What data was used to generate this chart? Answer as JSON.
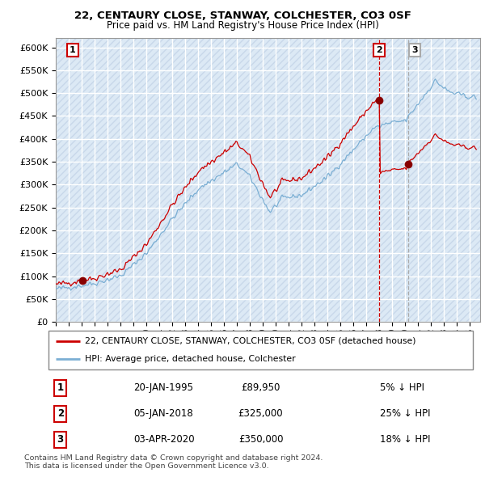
{
  "title1": "22, CENTAURY CLOSE, STANWAY, COLCHESTER, CO3 0SF",
  "title2": "Price paid vs. HM Land Registry's House Price Index (HPI)",
  "legend_line1": "22, CENTAURY CLOSE, STANWAY, COLCHESTER, CO3 0SF (detached house)",
  "legend_line2": "HPI: Average price, detached house, Colchester",
  "transactions": [
    {
      "num": 1,
      "date": "20-JAN-1995",
      "price": 89950,
      "price_str": "£89,950",
      "pct": "5%",
      "dir": "↓",
      "year": 1995.054
    },
    {
      "num": 2,
      "date": "05-JAN-2018",
      "price": 325000,
      "price_str": "£325,000",
      "pct": "25%",
      "dir": "↓",
      "year": 2018.013
    },
    {
      "num": 3,
      "date": "03-APR-2020",
      "price": 350000,
      "price_str": "£350,000",
      "pct": "18%",
      "dir": "↓",
      "year": 2020.254
    }
  ],
  "footer": "Contains HM Land Registry data © Crown copyright and database right 2024.\nThis data is licensed under the Open Government Licence v3.0.",
  "hpi_color": "#7bafd4",
  "price_color": "#cc0000",
  "marker_color": "#880000",
  "vline_red_color": "#cc0000",
  "vline_gray_color": "#aaaaaa",
  "bg_color": "#dce9f5",
  "hatch_color": "#c8d8ea",
  "grid_color": "#ffffff",
  "ylim": [
    0,
    620000
  ],
  "xlim_start": 1993.0,
  "xlim_end": 2025.8,
  "box_colors": [
    "#cc0000",
    "#cc0000",
    "#cc0000"
  ]
}
